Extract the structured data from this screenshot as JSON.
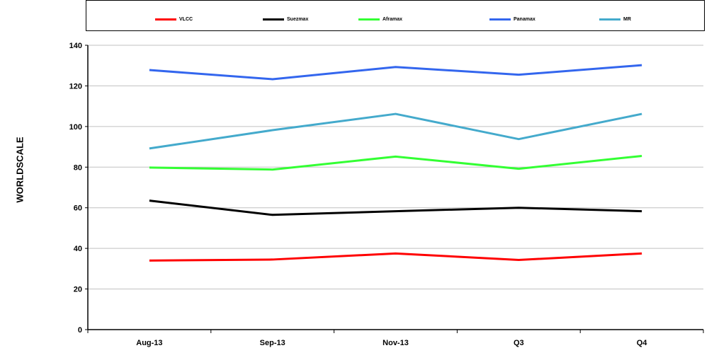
{
  "chart_data": {
    "type": "line",
    "title": "",
    "xlabel": "",
    "ylabel": "WORLDSCALE",
    "categories": [
      "Aug-13",
      "Sep-13",
      "Nov-13",
      "Q3",
      "Q4"
    ],
    "ylim": [
      0,
      140
    ],
    "yticks": [
      0,
      20,
      40,
      60,
      80,
      100,
      120,
      140
    ],
    "grid": true,
    "legend_position": "top",
    "series": [
      {
        "name": "VLCC",
        "color": "#ff0000",
        "values": [
          34,
          34.5,
          37.5,
          34.3,
          37.5
        ]
      },
      {
        "name": "Suezmax",
        "color": "#000000",
        "values": [
          63.5,
          56.5,
          58.3,
          60,
          58.3
        ]
      },
      {
        "name": "Aframax",
        "color": "#33ff33",
        "values": [
          79.8,
          78.8,
          85.2,
          79.2,
          85.5
        ]
      },
      {
        "name": "Panamax",
        "color": "#3366ee",
        "values": [
          127.8,
          123.3,
          129.3,
          125.5,
          130.2
        ]
      },
      {
        "name": "MR",
        "color": "#44aacc",
        "values": [
          89.2,
          98.2,
          106.2,
          93.8,
          106.2
        ]
      }
    ]
  }
}
